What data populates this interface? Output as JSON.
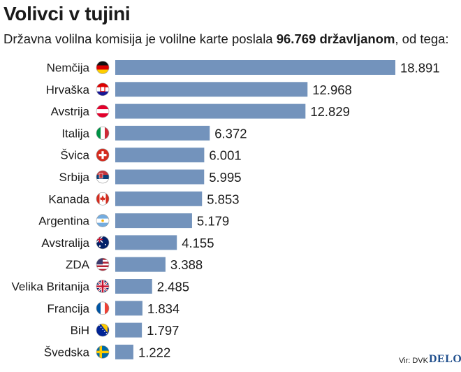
{
  "header": {
    "title": "Volivci v tujini",
    "subtitle_before": "Državna volilna komisija je volilne karte poslala ",
    "subtitle_bold": "96.769 državljanom",
    "subtitle_after": ", od tega:"
  },
  "footer": {
    "source": "Vir: DVK",
    "logo": "DELO"
  },
  "colors": {
    "bar": "#7393bc",
    "text": "#1a1a1a"
  },
  "chart_data": {
    "type": "bar",
    "orientation": "horizontal",
    "title": "Volivci v tujini",
    "categories": [
      "Nemčija",
      "Hrvaška",
      "Avstrija",
      "Italija",
      "Švica",
      "Srbija",
      "Kanada",
      "Argentina",
      "Avstralija",
      "ZDA",
      "Velika Britanija",
      "Francija",
      "BiH",
      "Švedska"
    ],
    "values": [
      18891,
      12968,
      12829,
      6372,
      6001,
      5995,
      5853,
      5179,
      4155,
      3388,
      2485,
      1834,
      1797,
      1222
    ],
    "value_labels": [
      "18.891",
      "12.968",
      "12.829",
      "6.372",
      "6.001",
      "5.995",
      "5.853",
      "5.179",
      "4.155",
      "3.388",
      "2.485",
      "1.834",
      "1.797",
      "1.222"
    ],
    "flag_icons": [
      "germany-flag-icon",
      "croatia-flag-icon",
      "austria-flag-icon",
      "italy-flag-icon",
      "switzerland-flag-icon",
      "serbia-flag-icon",
      "canada-flag-icon",
      "argentina-flag-icon",
      "australia-flag-icon",
      "usa-flag-icon",
      "uk-flag-icon",
      "france-flag-icon",
      "bih-flag-icon",
      "sweden-flag-icon"
    ],
    "xlim": [
      0,
      18891
    ],
    "grid": false,
    "legend": "none"
  }
}
